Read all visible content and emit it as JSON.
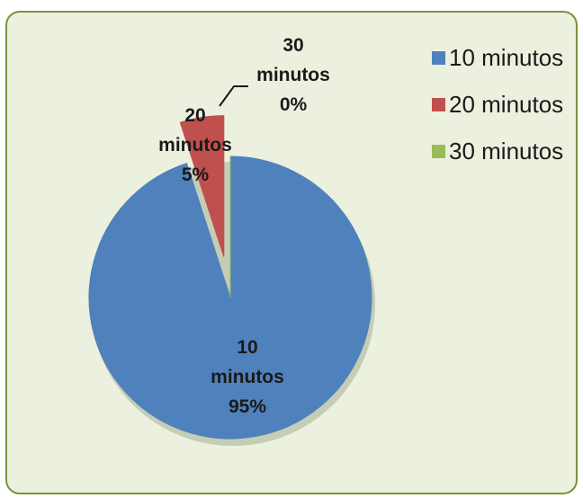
{
  "chart_data": {
    "type": "pie",
    "categories": [
      "10 minutos",
      "20 minutos",
      "30 minutos"
    ],
    "values": [
      95,
      5,
      0
    ],
    "colors": [
      "#4f81bd",
      "#c0504d",
      "#9bbb59"
    ],
    "data_labels": [
      {
        "name": "10",
        "sub": "minutos",
        "pct": "95%"
      },
      {
        "name": "20",
        "sub": "minutos",
        "pct": "5%"
      },
      {
        "name": "30",
        "sub": "minutos",
        "pct": "0%"
      }
    ],
    "legend": {
      "position": "right",
      "items": [
        "10 minutos",
        "20 minutos",
        "30 minutos"
      ]
    },
    "exploded_slice": "20 minutos"
  }
}
